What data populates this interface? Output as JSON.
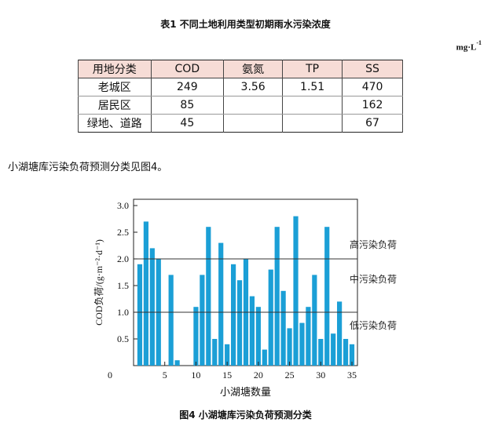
{
  "table": {
    "title": "表1 不同土地利用类型初期雨水污染浓度",
    "unit_base": "mg·L",
    "unit_exp": "-1",
    "headers": [
      "用地分类",
      "COD",
      "氨氮",
      "TP",
      "SS"
    ],
    "rows": [
      [
        "老城区",
        "249",
        "3.56",
        "1.51",
        "470"
      ],
      [
        "居民区",
        "85",
        "",
        "",
        "162"
      ],
      [
        "绿地、道路",
        "45",
        "",
        "",
        "67"
      ]
    ]
  },
  "paragraph": "小湖塘库污染负荷预测分类见图4。",
  "figure_caption": "图4 小湖塘库污染负荷预测分类",
  "chart_data": {
    "type": "bar",
    "xlabel": "小湖塘数量",
    "ylabel": "COD负荷/(g·m⁻²·d⁻¹)",
    "ylim": [
      0,
      3.0
    ],
    "xlim": [
      0,
      35
    ],
    "yticks": [
      "0.5",
      "1.0",
      "1.5",
      "2.0",
      "2.5",
      "3.0"
    ],
    "xticks": [
      "0",
      "5",
      "10",
      "15",
      "20",
      "25",
      "30",
      "35"
    ],
    "bar_color": "#1b9fd6",
    "x": [
      1,
      2,
      3,
      4,
      5,
      6,
      7,
      8,
      9,
      10,
      11,
      12,
      13,
      14,
      15,
      16,
      17,
      18,
      19,
      20,
      21,
      22,
      23,
      24,
      25,
      26,
      27,
      28,
      29,
      30,
      31,
      32,
      33,
      34,
      35
    ],
    "values": [
      1.9,
      2.7,
      2.2,
      2.0,
      0,
      1.7,
      0.1,
      0,
      0,
      1.1,
      1.7,
      2.6,
      0.5,
      2.3,
      0.4,
      1.9,
      1.6,
      2.0,
      1.3,
      1.1,
      0.3,
      1.8,
      2.6,
      1.4,
      0.7,
      2.8,
      0.8,
      1.1,
      1.7,
      0.5,
      2.6,
      0.6,
      1.2,
      0.5,
      0.4
    ],
    "thresholds": [
      1.0,
      2.0
    ],
    "annotations": [
      "高污染负荷",
      "中污染负荷",
      "低污染负荷"
    ],
    "grid": false
  }
}
